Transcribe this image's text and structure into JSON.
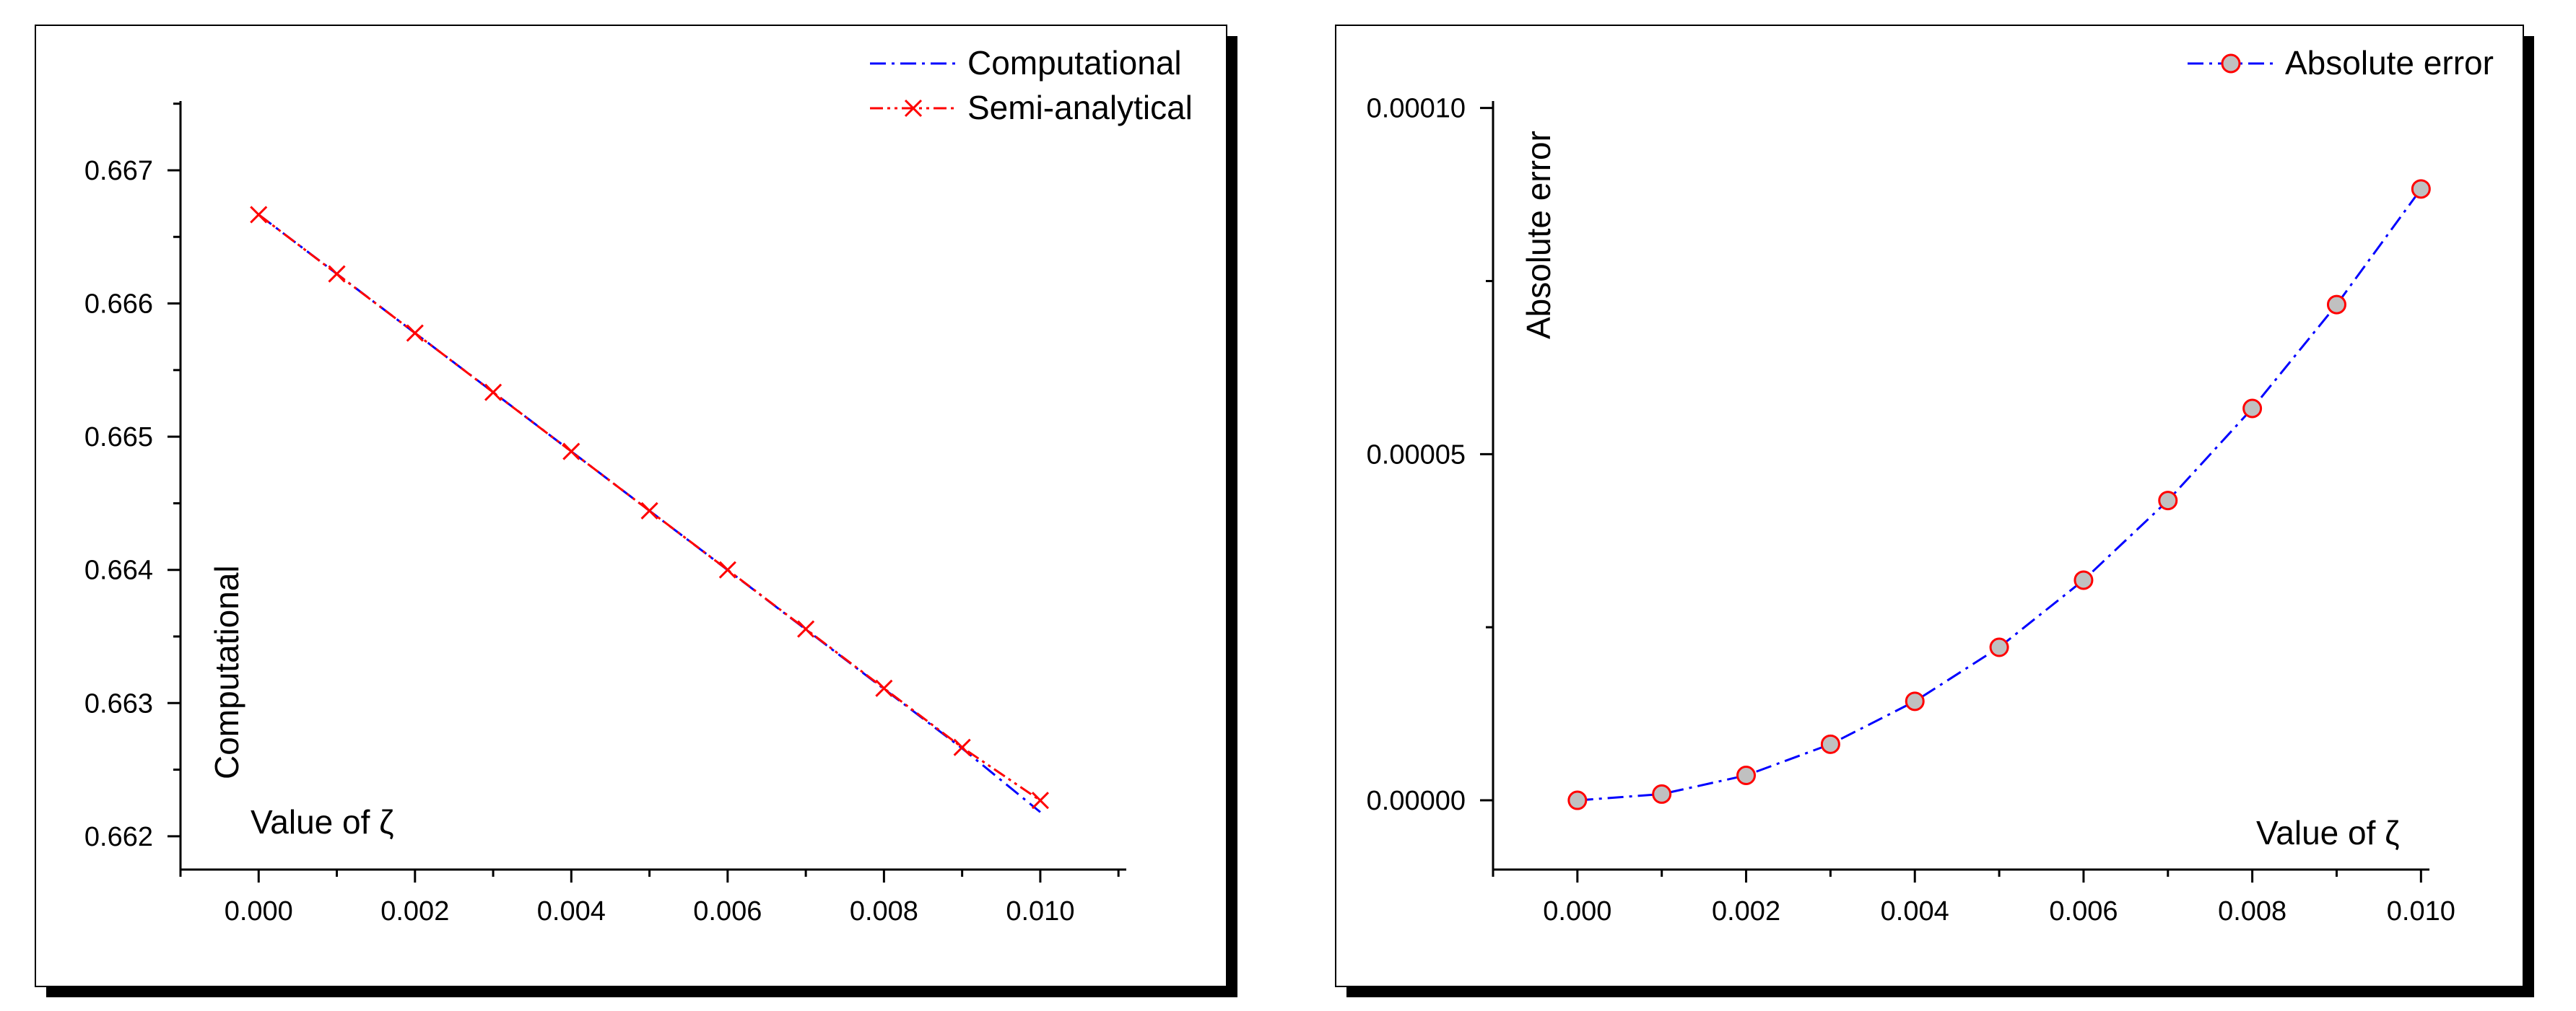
{
  "chart_data": [
    {
      "type": "line",
      "xlabel": "Value of ζ",
      "ylabel": "Computational",
      "xlim": [
        -0.001,
        0.0111
      ],
      "ylim": [
        0.66175,
        0.66752
      ],
      "x_ticks": [
        0.0,
        0.002,
        0.004,
        0.006,
        0.008,
        0.01
      ],
      "x_tick_labels": [
        "0.000",
        "0.002",
        "0.004",
        "0.006",
        "0.008",
        "0.010"
      ],
      "y_ticks": [
        0.662,
        0.663,
        0.664,
        0.665,
        0.666,
        0.667
      ],
      "y_tick_labels": [
        "0.662",
        "0.663",
        "0.664",
        "0.665",
        "0.666",
        "0.667"
      ],
      "grid": false,
      "legend_position": "top-right",
      "x": [
        0.0,
        0.001,
        0.002,
        0.003,
        0.004,
        0.005,
        0.006,
        0.007,
        0.008,
        0.009,
        0.01
      ],
      "series": [
        {
          "name": "Computational",
          "color": "#0000ff",
          "style": "dash-dot",
          "marker": "none",
          "values": [
            0.666667,
            0.666223,
            0.665778,
            0.665334,
            0.664889,
            0.664444,
            0.663999,
            0.663553,
            0.663106,
            0.66266,
            0.662181
          ]
        },
        {
          "name": "Semi-analytical",
          "color": "#ff0000",
          "style": "dash-dot-dot",
          "marker": "x",
          "values": [
            0.666667,
            0.666222,
            0.665778,
            0.665333,
            0.664889,
            0.664444,
            0.664,
            0.663556,
            0.663111,
            0.662667,
            0.662269
          ]
        }
      ]
    },
    {
      "type": "line",
      "xlabel": "Value of ζ",
      "ylabel": "Absolute error",
      "xlim": [
        -0.001,
        0.0101
      ],
      "ylim": [
        -1e-05,
        0.000101
      ],
      "x_ticks": [
        0.0,
        0.002,
        0.004,
        0.006,
        0.008,
        0.01
      ],
      "x_tick_labels": [
        "0.000",
        "0.002",
        "0.004",
        "0.006",
        "0.008",
        "0.010"
      ],
      "y_ticks": [
        0.0,
        5e-05,
        0.0001
      ],
      "y_tick_labels": [
        "0.00000",
        "0.00005",
        "0.00010"
      ],
      "y_minor_ticks": [
        2.5e-05,
        7.5e-05
      ],
      "grid": false,
      "legend_position": "top-right",
      "x": [
        0.0,
        0.001,
        0.002,
        0.003,
        0.004,
        0.005,
        0.006,
        0.007,
        0.008,
        0.009,
        0.01
      ],
      "series": [
        {
          "name": "Absolute error",
          "color": "#0000ff",
          "marker": "circle",
          "marker_fill": "#c0c0c0",
          "marker_edge": "#ff0000",
          "style": "dash-dot",
          "values": [
            0.0,
            9e-07,
            3.6e-06,
            8.1e-06,
            1.43e-05,
            2.21e-05,
            3.18e-05,
            4.33e-05,
            5.66e-05,
            7.16e-05,
            8.83e-05
          ]
        }
      ]
    }
  ]
}
